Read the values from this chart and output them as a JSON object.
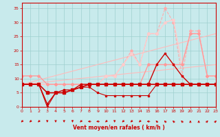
{
  "xlabel": "Vent moyen/en rafales ( km/h )",
  "xlim": [
    0,
    23
  ],
  "ylim": [
    0,
    37
  ],
  "yticks": [
    0,
    5,
    10,
    15,
    20,
    25,
    30,
    35
  ],
  "xticks": [
    0,
    1,
    2,
    3,
    4,
    5,
    6,
    7,
    8,
    9,
    10,
    11,
    12,
    13,
    14,
    15,
    16,
    17,
    18,
    19,
    20,
    21,
    22,
    23
  ],
  "bg_color": "#c8eaec",
  "grid_color": "#9ecfcf",
  "series": [
    {
      "x": [
        0,
        23
      ],
      "y": [
        8,
        26
      ],
      "color": "#ffbbbb",
      "lw": 0.8,
      "marker": null,
      "ms": 0,
      "alpha": 1.0,
      "ls": "-"
    },
    {
      "x": [
        0,
        23
      ],
      "y": [
        8,
        15
      ],
      "color": "#ffbbbb",
      "lw": 0.8,
      "marker": null,
      "ms": 0,
      "alpha": 1.0,
      "ls": "-"
    },
    {
      "x": [
        0,
        23
      ],
      "y": [
        8,
        8
      ],
      "color": "#ffbbbb",
      "lw": 0.8,
      "marker": null,
      "ms": 0,
      "alpha": 1.0,
      "ls": "-"
    },
    {
      "x": [
        0,
        1,
        2,
        3,
        4,
        5,
        6,
        7,
        8,
        9,
        10,
        11,
        12,
        13,
        14,
        15,
        16,
        17,
        18,
        19,
        20,
        21,
        22,
        23
      ],
      "y": [
        8,
        8,
        8,
        8,
        8,
        8,
        8,
        8,
        8,
        8,
        11,
        11,
        15,
        20,
        15,
        26,
        26,
        35,
        30,
        11,
        27,
        27,
        11,
        11
      ],
      "color": "#ffaaaa",
      "lw": 0.8,
      "marker": "D",
      "ms": 2.0,
      "alpha": 1.0,
      "ls": "--"
    },
    {
      "x": [
        0,
        1,
        2,
        3,
        4,
        5,
        6,
        7,
        8,
        9,
        10,
        11,
        12,
        13,
        14,
        15,
        16,
        17,
        18,
        19,
        20,
        21,
        22,
        23
      ],
      "y": [
        8,
        8,
        8,
        8,
        8,
        8,
        8,
        8,
        8,
        8,
        11,
        11,
        15,
        19,
        15,
        26,
        26,
        30,
        31,
        15,
        26,
        26,
        11,
        11
      ],
      "color": "#ffcccc",
      "lw": 1.0,
      "marker": "D",
      "ms": 2.0,
      "alpha": 1.0,
      "ls": "-"
    },
    {
      "x": [
        0,
        1,
        2,
        3,
        4,
        5,
        6,
        7,
        8,
        9,
        10,
        11,
        12,
        13,
        14,
        15,
        16,
        17,
        18,
        19,
        20,
        21,
        22,
        23
      ],
      "y": [
        11,
        11,
        11,
        8,
        8,
        8,
        8,
        8,
        8,
        8,
        8,
        8,
        8,
        8,
        8,
        15,
        15,
        15,
        15,
        15,
        26,
        26,
        11,
        11
      ],
      "color": "#ff9999",
      "lw": 1.0,
      "marker": "D",
      "ms": 2.0,
      "alpha": 1.0,
      "ls": "-"
    },
    {
      "x": [
        0,
        1,
        2,
        3,
        4,
        5,
        6,
        7,
        8,
        9,
        10,
        11,
        12,
        13,
        14,
        15,
        16,
        17,
        18,
        19,
        20,
        21,
        22,
        23
      ],
      "y": [
        8,
        8,
        8,
        1,
        5,
        6,
        6,
        8,
        8,
        8,
        8,
        8,
        8,
        8,
        8,
        8,
        15,
        19,
        15,
        11,
        8,
        8,
        8,
        8
      ],
      "color": "#cc0000",
      "lw": 1.0,
      "marker": "s",
      "ms": 2.0,
      "alpha": 1.0,
      "ls": "-"
    },
    {
      "x": [
        0,
        1,
        2,
        3,
        4,
        5,
        6,
        7,
        8,
        9,
        10,
        11,
        12,
        13,
        14,
        15,
        16,
        17,
        18,
        19,
        20,
        21,
        22,
        23
      ],
      "y": [
        8,
        8,
        8,
        0,
        5,
        5,
        6,
        7,
        7,
        5,
        4,
        4,
        4,
        4,
        4,
        4,
        8,
        8,
        8,
        8,
        8,
        8,
        8,
        8
      ],
      "color": "#cc0000",
      "lw": 0.8,
      "marker": "s",
      "ms": 1.5,
      "alpha": 1.0,
      "ls": "-"
    },
    {
      "x": [
        0,
        1,
        2,
        3,
        4,
        5,
        6,
        7,
        8,
        9,
        10,
        11,
        12,
        13,
        14,
        15,
        16,
        17,
        18,
        19,
        20,
        21,
        22,
        23
      ],
      "y": [
        8,
        8,
        8,
        5,
        5,
        5,
        6,
        7,
        8,
        8,
        8,
        8,
        8,
        8,
        8,
        8,
        8,
        8,
        8,
        8,
        8,
        8,
        8,
        8
      ],
      "color": "#cc0000",
      "lw": 1.2,
      "marker": "s",
      "ms": 2.5,
      "alpha": 1.0,
      "ls": "-"
    }
  ],
  "wind_arrows": {
    "x": [
      0,
      1,
      2,
      3,
      4,
      5,
      6,
      7,
      8,
      9,
      10,
      11,
      12,
      13,
      14,
      15,
      16,
      17,
      18,
      19,
      20,
      21,
      22,
      23
    ],
    "angles": [
      225,
      225,
      225,
      180,
      180,
      180,
      180,
      225,
      270,
      270,
      225,
      180,
      225,
      225,
      225,
      270,
      315,
      315,
      315,
      315,
      0,
      0,
      45,
      45
    ]
  }
}
